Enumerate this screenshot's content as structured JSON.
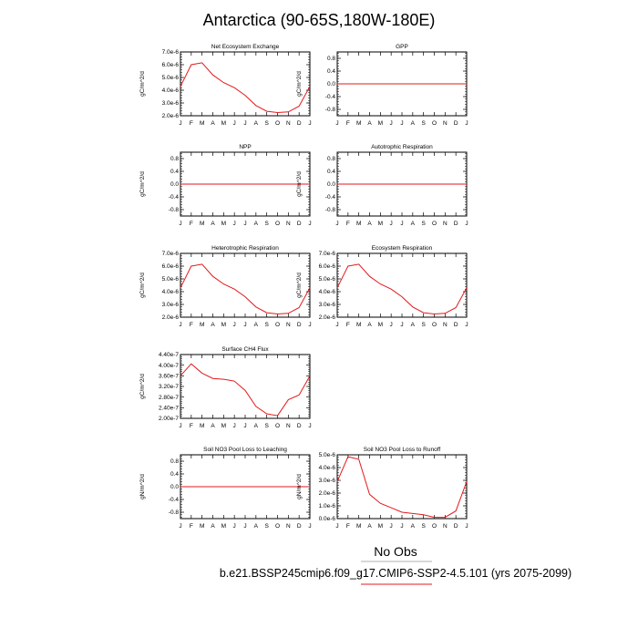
{
  "title": "Antarctica (90-65S,180W-180E)",
  "legend": {
    "obs_label": "No Obs",
    "case_label": "b.e21.BSSP245cmip6.f09_g17.CMIP6-SSP2-4.5.101 (yrs 2075-2099)",
    "case_color": "#e31a1c"
  },
  "chart_data": [
    {
      "type": "line",
      "title": "Net Ecosystem Exchange",
      "ylabel": "gC/m^2/d",
      "categories": [
        "J",
        "F",
        "M",
        "A",
        "M",
        "J",
        "J",
        "A",
        "S",
        "O",
        "N",
        "D",
        "J"
      ],
      "yticks": [
        "2.0e-6",
        "3.0e-6",
        "4.0e-6",
        "5.0e-6",
        "6.0e-6",
        "7.0e-6"
      ],
      "ylim": [
        2e-06,
        7e-06
      ],
      "series": [
        {
          "values": [
            4.3e-06,
            6e-06,
            6.15e-06,
            5.2e-06,
            4.6e-06,
            4.2e-06,
            3.6e-06,
            2.8e-06,
            2.35e-06,
            2.25e-06,
            2.3e-06,
            2.75e-06,
            4.3e-06
          ],
          "color": "#e31a1c"
        }
      ]
    },
    {
      "type": "line",
      "title": "GPP",
      "ylabel": "gC/m^2/d",
      "categories": [
        "J",
        "F",
        "M",
        "A",
        "M",
        "J",
        "J",
        "A",
        "S",
        "O",
        "N",
        "D",
        "J"
      ],
      "yticks": [
        "-0.8",
        "-0.4",
        "0.0",
        "0.4",
        "0.8"
      ],
      "ylim": [
        -1.0,
        1.0
      ],
      "series": [
        {
          "values": [
            0,
            0,
            0,
            0,
            0,
            0,
            0,
            0,
            0,
            0,
            0,
            0,
            0
          ],
          "color": "#e31a1c"
        }
      ]
    },
    {
      "type": "line",
      "title": "NPP",
      "ylabel": "gC/m^2/d",
      "categories": [
        "J",
        "F",
        "M",
        "A",
        "M",
        "J",
        "J",
        "A",
        "S",
        "O",
        "N",
        "D",
        "J"
      ],
      "yticks": [
        "-0.8",
        "-0.4",
        "0.0",
        "0.4",
        "0.8"
      ],
      "ylim": [
        -1.0,
        1.0
      ],
      "series": [
        {
          "values": [
            0,
            0,
            0,
            0,
            0,
            0,
            0,
            0,
            0,
            0,
            0,
            0,
            0
          ],
          "color": "#e31a1c"
        }
      ]
    },
    {
      "type": "line",
      "title": "Autotrophic Respiration",
      "ylabel": "gC/m^2/d",
      "categories": [
        "J",
        "F",
        "M",
        "A",
        "M",
        "J",
        "J",
        "A",
        "S",
        "O",
        "N",
        "D",
        "J"
      ],
      "yticks": [
        "-0.8",
        "-0.4",
        "0.0",
        "0.4",
        "0.8"
      ],
      "ylim": [
        -1.0,
        1.0
      ],
      "series": [
        {
          "values": [
            0,
            0,
            0,
            0,
            0,
            0,
            0,
            0,
            0,
            0,
            0,
            0,
            0
          ],
          "color": "#e31a1c"
        }
      ]
    },
    {
      "type": "line",
      "title": "Heterotrophic Respiration",
      "ylabel": "gC/m^2/d",
      "categories": [
        "J",
        "F",
        "M",
        "A",
        "M",
        "J",
        "J",
        "A",
        "S",
        "O",
        "N",
        "D",
        "J"
      ],
      "yticks": [
        "2.0e-6",
        "3.0e-6",
        "4.0e-6",
        "5.0e-6",
        "6.0e-6",
        "7.0e-6"
      ],
      "ylim": [
        2e-06,
        7e-06
      ],
      "series": [
        {
          "values": [
            4.3e-06,
            6e-06,
            6.15e-06,
            5.2e-06,
            4.6e-06,
            4.2e-06,
            3.6e-06,
            2.8e-06,
            2.35e-06,
            2.25e-06,
            2.3e-06,
            2.75e-06,
            4.3e-06
          ],
          "color": "#e31a1c"
        }
      ]
    },
    {
      "type": "line",
      "title": "Ecosystem Respiration",
      "ylabel": "gC/m^2/d",
      "categories": [
        "J",
        "F",
        "M",
        "A",
        "M",
        "J",
        "J",
        "A",
        "S",
        "O",
        "N",
        "D",
        "J"
      ],
      "yticks": [
        "2.0e-6",
        "3.0e-6",
        "4.0e-6",
        "5.0e-6",
        "6.0e-6",
        "7.0e-6"
      ],
      "ylim": [
        2e-06,
        7e-06
      ],
      "series": [
        {
          "values": [
            4.3e-06,
            6e-06,
            6.15e-06,
            5.2e-06,
            4.6e-06,
            4.2e-06,
            3.6e-06,
            2.8e-06,
            2.35e-06,
            2.25e-06,
            2.3e-06,
            2.75e-06,
            4.3e-06
          ],
          "color": "#e31a1c"
        }
      ]
    },
    {
      "type": "line",
      "title": "Surface CH4 Flux",
      "ylabel": "gC/m^2/d",
      "categories": [
        "J",
        "F",
        "M",
        "A",
        "M",
        "J",
        "J",
        "A",
        "S",
        "O",
        "N",
        "D",
        "J"
      ],
      "yticks": [
        "2.00e-7",
        "2.40e-7",
        "2.80e-7",
        "3.20e-7",
        "3.60e-7",
        "4.00e-7",
        "4.40e-7"
      ],
      "ylim": [
        2e-07,
        4.4e-07
      ],
      "series": [
        {
          "values": [
            3.6e-07,
            4.05e-07,
            3.7e-07,
            3.5e-07,
            3.47e-07,
            3.4e-07,
            3.05e-07,
            2.45e-07,
            2.17e-07,
            2.1e-07,
            2.7e-07,
            2.88e-07,
            3.6e-07
          ],
          "color": "#e31a1c"
        }
      ]
    },
    {
      "type": "line",
      "title": "Soil NO3 Pool Loss to Leaching",
      "ylabel": "gN/m^2/d",
      "categories": [
        "J",
        "F",
        "M",
        "A",
        "M",
        "J",
        "J",
        "A",
        "S",
        "O",
        "N",
        "D",
        "J"
      ],
      "yticks": [
        "-0.8",
        "-0.4",
        "0.0",
        "0.4",
        "0.8"
      ],
      "ylim": [
        -1.0,
        1.0
      ],
      "series": [
        {
          "values": [
            0,
            0,
            0,
            0,
            0,
            0,
            0,
            0,
            0,
            0,
            0,
            0,
            0
          ],
          "color": "#e31a1c"
        }
      ]
    },
    {
      "type": "line",
      "title": "Soil NO3 Pool Loss to Runoff",
      "ylabel": "gN/m^2/d",
      "categories": [
        "J",
        "F",
        "M",
        "A",
        "M",
        "J",
        "J",
        "A",
        "S",
        "O",
        "N",
        "D",
        "J"
      ],
      "yticks": [
        "0.0e-6",
        "1.0e-6",
        "2.0e-6",
        "3.0e-6",
        "4.0e-6",
        "5.0e-6"
      ],
      "ylim": [
        0,
        5e-06
      ],
      "series": [
        {
          "values": [
            2.9e-06,
            4.85e-06,
            4.65e-06,
            1.9e-06,
            1.2e-06,
            8.5e-07,
            5e-07,
            4e-07,
            3e-07,
            1e-07,
            1e-07,
            6e-07,
            2.9e-06
          ],
          "color": "#e31a1c"
        }
      ]
    }
  ]
}
